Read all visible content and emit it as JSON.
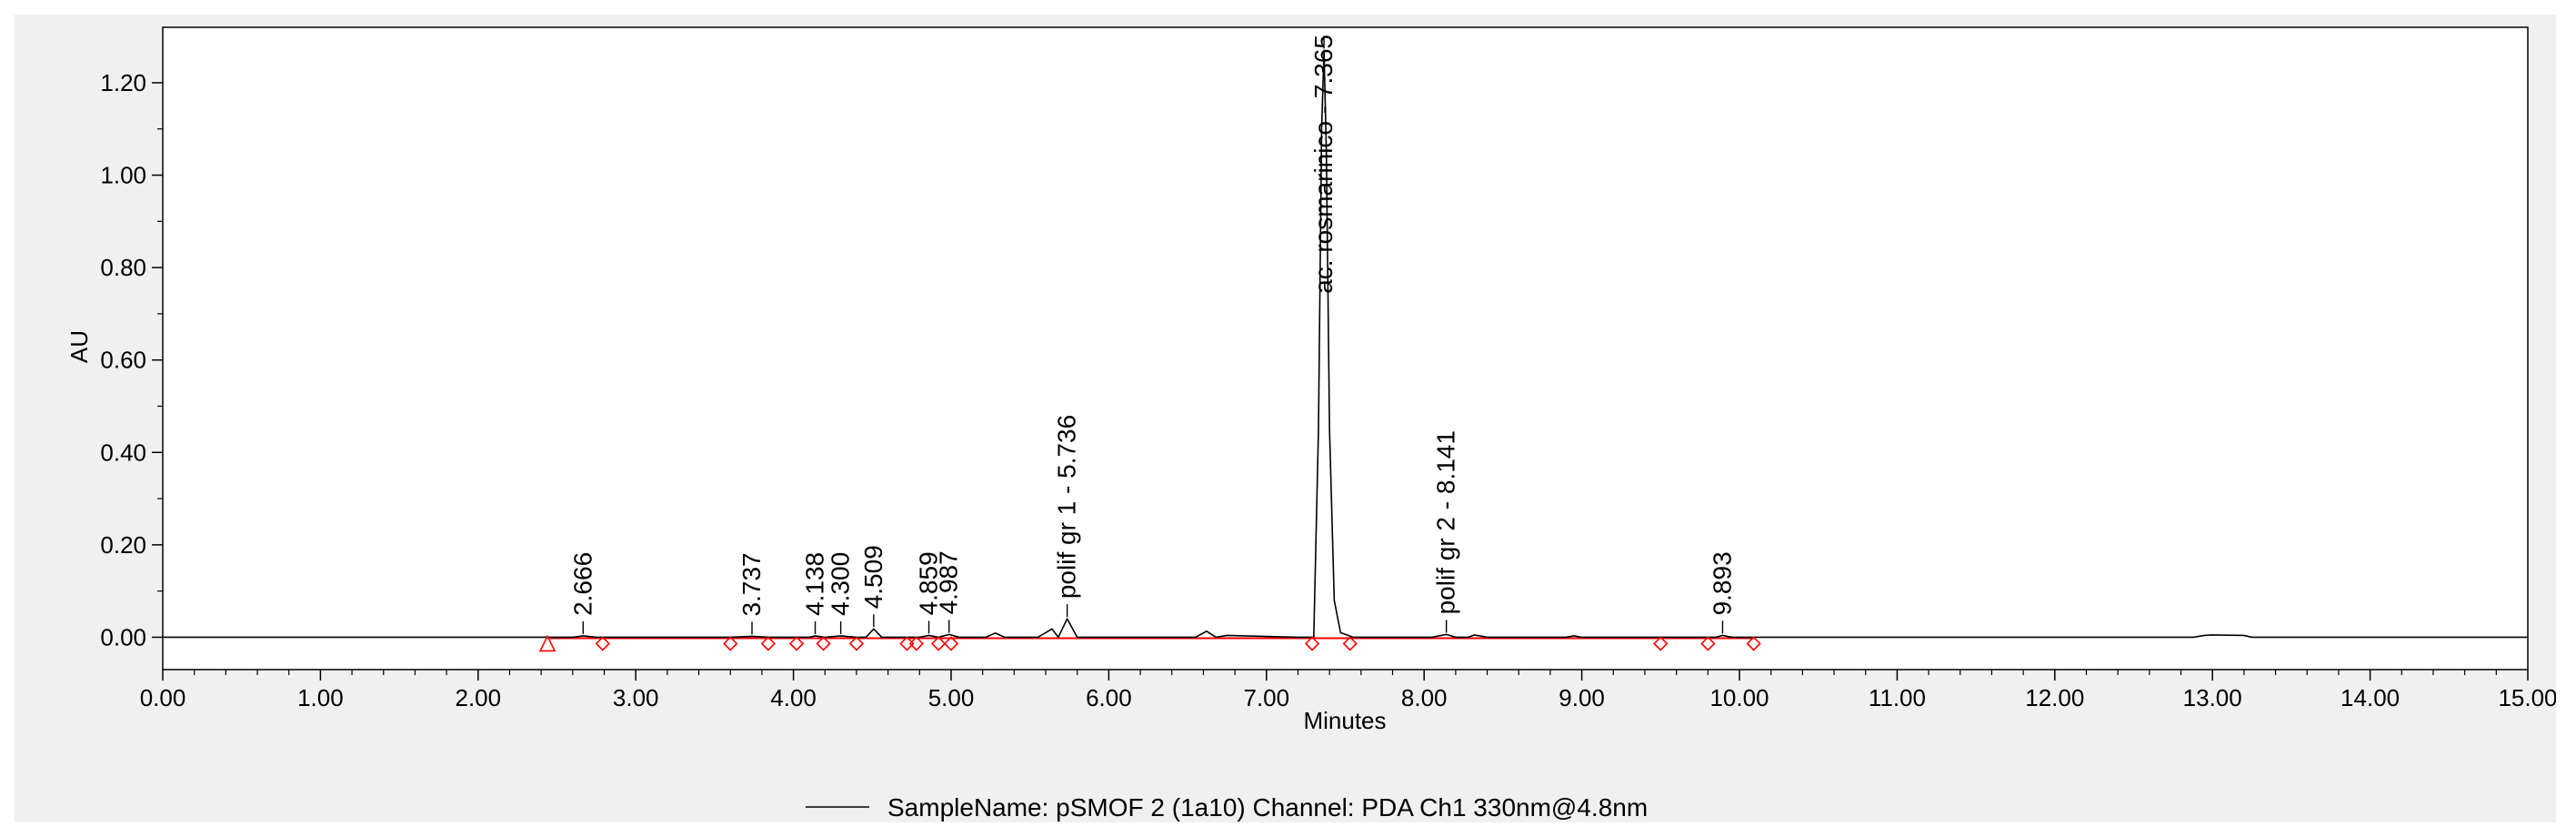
{
  "chart_data": {
    "type": "line",
    "xlabel": "Minutes",
    "ylabel": "AU",
    "xlim": [
      0,
      15
    ],
    "ylim": [
      -0.07,
      1.32
    ],
    "x_ticks": [
      "0.00",
      "1.00",
      "2.00",
      "3.00",
      "4.00",
      "5.00",
      "6.00",
      "7.00",
      "8.00",
      "9.00",
      "10.00",
      "11.00",
      "12.00",
      "13.00",
      "14.00",
      "15.00"
    ],
    "y_ticks": [
      "0.00",
      "0.20",
      "0.40",
      "0.60",
      "0.80",
      "1.00",
      "1.20"
    ],
    "legend": {
      "position": "bottom-center",
      "entry": "SampleName: pSMOF 2 (1a10) Channel: PDA Ch1 330nm@4.8nm"
    },
    "series": [
      {
        "name": "SampleName: pSMOF 2 (1a10) Channel: PDA Ch1 330nm@4.8nm",
        "color": "#000000",
        "x": [
          0.0,
          2.4,
          2.6,
          2.666,
          2.75,
          3.6,
          3.737,
          3.85,
          4.1,
          4.138,
          4.2,
          4.3,
          4.4,
          4.46,
          4.509,
          4.56,
          4.8,
          4.859,
          4.92,
          4.987,
          5.05,
          5.22,
          5.28,
          5.34,
          5.55,
          5.64,
          5.68,
          5.736,
          5.8,
          6.2,
          6.55,
          6.62,
          6.68,
          6.75,
          7.2,
          7.3,
          7.33,
          7.35,
          7.365,
          7.38,
          7.4,
          7.43,
          7.47,
          7.55,
          8.05,
          8.141,
          8.2,
          8.28,
          8.32,
          8.4,
          8.9,
          8.95,
          9.0,
          9.85,
          9.893,
          9.95,
          12.88,
          12.95,
          13.0,
          13.2,
          13.25,
          15.0
        ],
        "y": [
          0.0,
          0.0,
          0.0,
          0.003,
          0.0,
          0.0,
          0.002,
          0.0,
          0.0,
          0.003,
          0.0,
          0.003,
          0.0,
          0.0,
          0.018,
          0.0,
          0.0,
          0.004,
          0.0,
          0.006,
          0.0,
          0.0,
          0.009,
          0.0,
          0.0,
          0.018,
          0.0,
          0.04,
          0.0,
          0.0,
          0.0,
          0.013,
          0.0,
          0.004,
          0.0,
          0.0,
          0.45,
          1.1,
          1.27,
          1.05,
          0.45,
          0.08,
          0.01,
          0.0,
          0.0,
          0.006,
          0.0,
          0.0,
          0.005,
          0.0,
          0.0,
          0.003,
          0.0,
          0.0,
          0.004,
          0.0,
          0.0,
          0.004,
          0.005,
          0.004,
          0.0,
          0.0
        ]
      }
    ],
    "baseline": {
      "color": "#ff0000",
      "x": [
        2.45,
        10.1
      ]
    },
    "peak_labels": [
      {
        "x": 2.666,
        "y": 0.003,
        "label": "2.666"
      },
      {
        "x": 3.737,
        "y": 0.002,
        "label": "3.737"
      },
      {
        "x": 4.138,
        "y": 0.003,
        "label": "4.138"
      },
      {
        "x": 4.3,
        "y": 0.003,
        "label": "4.300"
      },
      {
        "x": 4.509,
        "y": 0.018,
        "label": "4.509"
      },
      {
        "x": 4.859,
        "y": 0.004,
        "label": "4.859"
      },
      {
        "x": 4.987,
        "y": 0.006,
        "label": "4.987"
      },
      {
        "x": 5.736,
        "y": 0.04,
        "label": "polif gr 1 - 5.736"
      },
      {
        "x": 7.365,
        "y": 1.27,
        "label": "ac. rosmarinico - 7.365"
      },
      {
        "x": 8.141,
        "y": 0.006,
        "label": "polif gr 2 - 8.141"
      },
      {
        "x": 9.893,
        "y": 0.004,
        "label": "9.893"
      }
    ],
    "integration_markers": {
      "color": "#ff0000",
      "triangle_x": [
        2.44
      ],
      "diamond_x": [
        2.79,
        3.6,
        3.84,
        4.02,
        4.19,
        4.4,
        4.72,
        4.78,
        4.92,
        5.0,
        7.29,
        7.53,
        9.5,
        9.8,
        10.09
      ]
    }
  }
}
